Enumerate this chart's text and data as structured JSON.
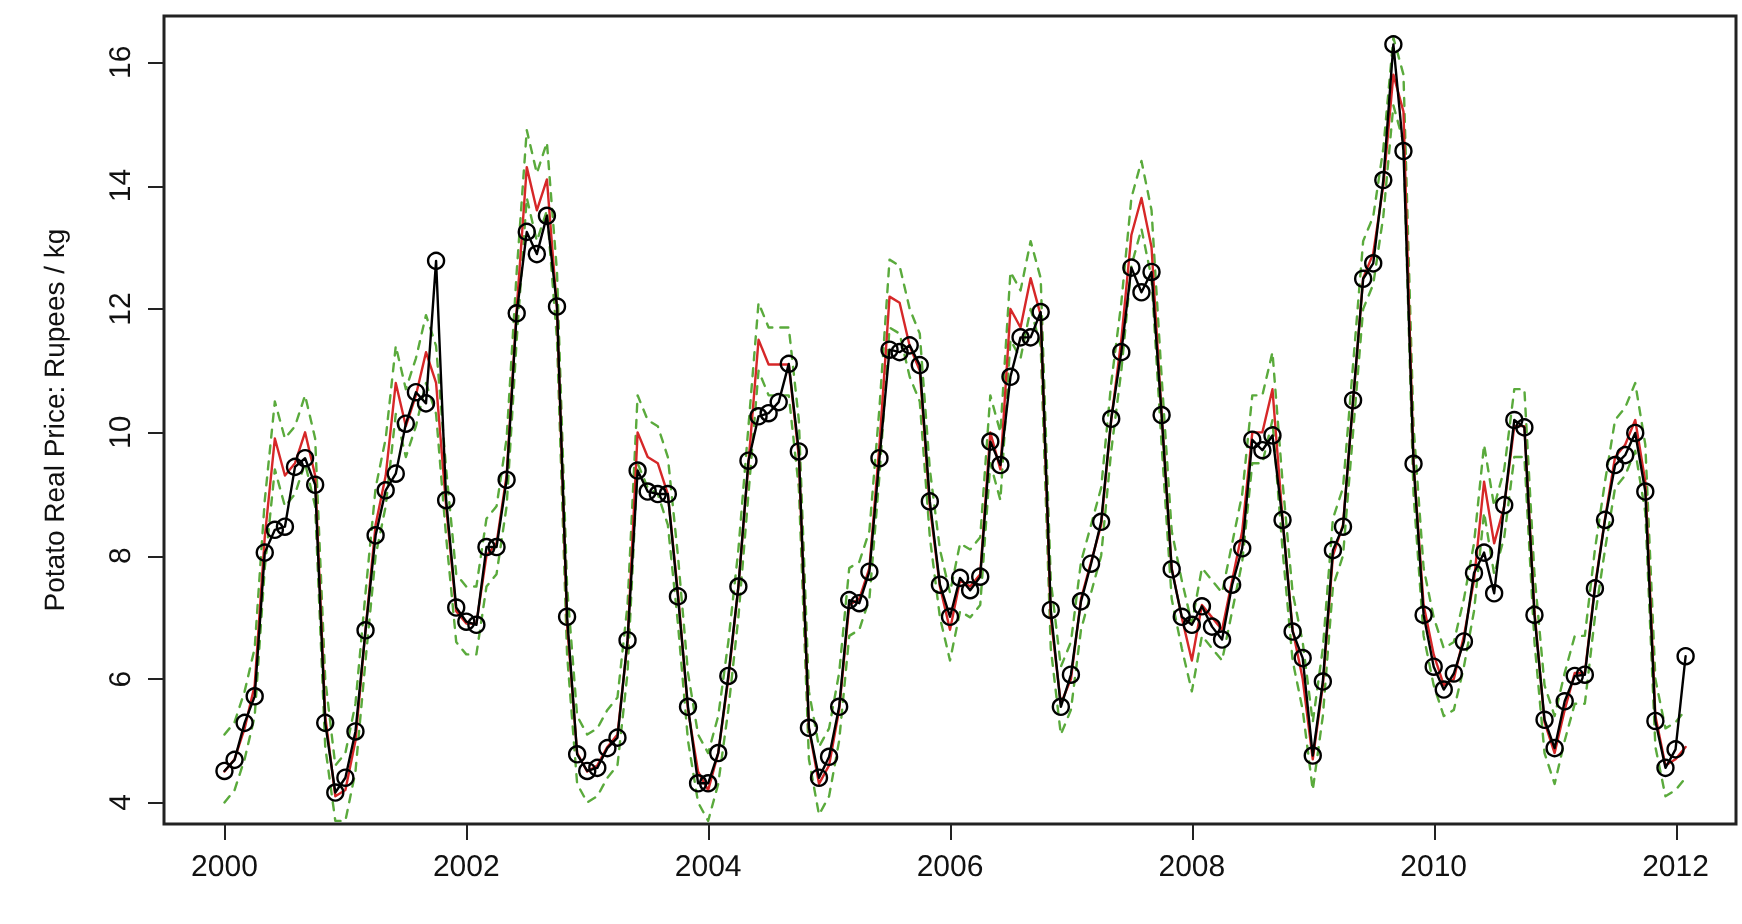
{
  "chart_data": {
    "type": "line",
    "ylabel": "Potato Real Price: Rupees / kg",
    "x": [
      "2000-01",
      "2000-02",
      "2000-03",
      "2000-04",
      "2000-05",
      "2000-06",
      "2000-07",
      "2000-08",
      "2000-09",
      "2000-10",
      "2000-11",
      "2000-12",
      "2001-01",
      "2001-02",
      "2001-03",
      "2001-04",
      "2001-05",
      "2001-06",
      "2001-07",
      "2001-08",
      "2001-09",
      "2001-10",
      "2001-11",
      "2001-12",
      "2002-01",
      "2002-02",
      "2002-03",
      "2002-04",
      "2002-05",
      "2002-06",
      "2002-07",
      "2002-08",
      "2002-09",
      "2002-10",
      "2002-11",
      "2002-12",
      "2003-01",
      "2003-02",
      "2003-03",
      "2003-04",
      "2003-05",
      "2003-06",
      "2003-07",
      "2003-08",
      "2003-09",
      "2003-10",
      "2003-11",
      "2003-12",
      "2004-01",
      "2004-02",
      "2004-03",
      "2004-04",
      "2004-05",
      "2004-06",
      "2004-07",
      "2004-08",
      "2004-09",
      "2004-10",
      "2004-11",
      "2004-12",
      "2005-01",
      "2005-02",
      "2005-03",
      "2005-04",
      "2005-05",
      "2005-06",
      "2005-07",
      "2005-08",
      "2005-09",
      "2005-10",
      "2005-11",
      "2005-12",
      "2006-01",
      "2006-02",
      "2006-03",
      "2006-04",
      "2006-05",
      "2006-06",
      "2006-07",
      "2006-08",
      "2006-09",
      "2006-10",
      "2006-11",
      "2006-12",
      "2007-01",
      "2007-02",
      "2007-03",
      "2007-04",
      "2007-05",
      "2007-06",
      "2007-07",
      "2007-08",
      "2007-09",
      "2007-10",
      "2007-11",
      "2007-12",
      "2008-01",
      "2008-02",
      "2008-03",
      "2008-04",
      "2008-05",
      "2008-06",
      "2008-07",
      "2008-08",
      "2008-09",
      "2008-10",
      "2008-11",
      "2008-12",
      "2009-01",
      "2009-02",
      "2009-03",
      "2009-04",
      "2009-05",
      "2009-06",
      "2009-07",
      "2009-08",
      "2009-09",
      "2009-10",
      "2009-11",
      "2009-12",
      "2010-01",
      "2010-02",
      "2010-03",
      "2010-04",
      "2010-05",
      "2010-06",
      "2010-07",
      "2010-08",
      "2010-09",
      "2010-10",
      "2010-11",
      "2010-12",
      "2011-01",
      "2011-02",
      "2011-03",
      "2011-04",
      "2011-05",
      "2011-06",
      "2011-07",
      "2011-08",
      "2011-09",
      "2011-10",
      "2011-11",
      "2011-12",
      "2012-01",
      "2012-02"
    ],
    "series": [
      {
        "color": "#5aaa3c",
        "line_style": "dashed",
        "marker": "none",
        "values": [
          5.1,
          5.3,
          5.8,
          6.5,
          8.9,
          10.5,
          9.9,
          10.1,
          10.6,
          9.9,
          6.0,
          4.6,
          4.8,
          5.6,
          7.4,
          9.1,
          9.9,
          11.4,
          10.7,
          11.2,
          11.9,
          11.4,
          9.4,
          7.7,
          7.5,
          7.5,
          8.6,
          8.8,
          9.9,
          12.6,
          14.9,
          14.2,
          14.7,
          12.6,
          7.5,
          5.4,
          5.1,
          5.2,
          5.5,
          5.7,
          7.2,
          10.6,
          10.2,
          10.1,
          9.6,
          8.0,
          6.1,
          5.1,
          4.8,
          5.4,
          6.6,
          8.1,
          10.1,
          12.1,
          11.7,
          11.7,
          11.7,
          10.2,
          5.8,
          4.9,
          5.2,
          6.1,
          7.8,
          7.9,
          8.4,
          10.4,
          12.8,
          12.7,
          12.0,
          11.6,
          9.4,
          8.1,
          7.4,
          8.2,
          8.1,
          8.3,
          10.6,
          10.0,
          12.6,
          12.3,
          13.1,
          12.5,
          7.6,
          6.2,
          6.6,
          7.9,
          8.5,
          9.1,
          10.8,
          12.1,
          13.8,
          14.4,
          13.6,
          10.9,
          8.4,
          7.6,
          6.9,
          7.8,
          7.6,
          7.4,
          8.2,
          9.0,
          10.6,
          10.6,
          11.3,
          9.2,
          7.4,
          6.6,
          5.3,
          6.5,
          8.6,
          9.1,
          11.1,
          13.1,
          13.5,
          14.6,
          16.4,
          15.8,
          10.1,
          7.8,
          7.0,
          6.5,
          6.6,
          7.3,
          8.2,
          9.8,
          8.8,
          9.4,
          10.7,
          10.7,
          7.7,
          5.9,
          5.4,
          6.1,
          6.7,
          6.7,
          8.1,
          9.2,
          10.2,
          10.4,
          10.8,
          9.8,
          6.0,
          5.2,
          5.3,
          5.5
        ]
      },
      {
        "color": "#5aaa3c",
        "line_style": "dashed",
        "marker": "none",
        "values": [
          4.0,
          4.2,
          4.7,
          5.4,
          7.8,
          9.4,
          8.8,
          9.0,
          9.5,
          8.8,
          4.9,
          3.7,
          3.7,
          4.5,
          6.3,
          8.0,
          8.8,
          10.3,
          9.6,
          10.1,
          10.8,
          10.3,
          8.3,
          6.6,
          6.4,
          6.4,
          7.5,
          7.7,
          8.8,
          11.5,
          13.8,
          13.1,
          13.6,
          11.5,
          6.4,
          4.3,
          4.0,
          4.1,
          4.4,
          4.6,
          6.1,
          9.5,
          9.1,
          9.0,
          8.5,
          6.9,
          5.0,
          4.0,
          3.7,
          4.3,
          5.5,
          7.0,
          9.0,
          11.0,
          10.6,
          10.6,
          10.6,
          9.1,
          4.7,
          3.8,
          4.1,
          5.0,
          6.7,
          6.8,
          7.3,
          9.3,
          11.7,
          11.6,
          10.9,
          10.5,
          8.3,
          7.0,
          6.3,
          7.1,
          7.0,
          7.2,
          9.5,
          8.9,
          11.5,
          11.2,
          12.0,
          11.4,
          6.5,
          5.1,
          5.5,
          6.8,
          7.4,
          8.0,
          9.7,
          11.0,
          12.7,
          13.3,
          12.5,
          9.8,
          7.3,
          6.5,
          5.8,
          6.7,
          6.5,
          6.3,
          7.1,
          7.9,
          9.5,
          9.5,
          10.2,
          8.1,
          6.3,
          5.5,
          4.2,
          5.4,
          7.5,
          8.0,
          10.0,
          12.0,
          12.4,
          13.5,
          15.3,
          14.7,
          9.0,
          6.7,
          5.9,
          5.4,
          5.5,
          6.2,
          7.1,
          8.7,
          7.7,
          8.3,
          9.6,
          9.6,
          6.6,
          4.8,
          4.3,
          5.0,
          5.6,
          5.6,
          7.0,
          8.1,
          9.1,
          9.3,
          9.7,
          8.7,
          4.9,
          4.1,
          4.2,
          4.4
        ]
      },
      {
        "color": "#d62728",
        "line_style": "solid",
        "marker": "none",
        "values": [
          4.5,
          4.7,
          5.2,
          5.9,
          8.3,
          9.9,
          9.3,
          9.5,
          10.0,
          9.3,
          5.4,
          4.1,
          4.2,
          5.0,
          6.8,
          8.5,
          9.3,
          10.8,
          10.1,
          10.6,
          11.3,
          10.8,
          8.8,
          7.1,
          6.9,
          6.9,
          8.0,
          8.2,
          9.3,
          12.0,
          14.3,
          13.6,
          14.1,
          12.0,
          6.9,
          4.8,
          4.5,
          4.6,
          4.9,
          5.1,
          6.6,
          10.0,
          9.6,
          9.5,
          9.0,
          7.4,
          5.5,
          4.5,
          4.2,
          4.8,
          6.0,
          7.5,
          9.5,
          11.5,
          11.1,
          11.1,
          11.1,
          9.6,
          5.2,
          4.3,
          4.6,
          5.5,
          7.2,
          7.3,
          7.8,
          9.8,
          12.2,
          12.1,
          11.4,
          11.0,
          8.8,
          7.5,
          6.8,
          7.6,
          7.5,
          7.7,
          10.0,
          9.4,
          12.0,
          11.7,
          12.5,
          11.9,
          7.0,
          5.6,
          6.0,
          7.3,
          7.9,
          8.5,
          10.2,
          11.5,
          13.2,
          13.8,
          13.0,
          10.3,
          7.8,
          7.0,
          6.3,
          7.2,
          7.0,
          6.8,
          7.6,
          8.4,
          10.0,
          10.0,
          10.7,
          8.6,
          6.8,
          6.0,
          4.7,
          5.9,
          8.0,
          8.5,
          10.5,
          12.5,
          12.9,
          14.0,
          15.8,
          15.2,
          9.5,
          7.2,
          6.4,
          5.9,
          6.0,
          6.7,
          7.6,
          9.2,
          8.2,
          8.8,
          10.1,
          10.1,
          7.1,
          5.3,
          4.8,
          5.5,
          6.1,
          6.1,
          7.5,
          8.6,
          9.6,
          9.8,
          10.2,
          9.2,
          5.4,
          4.6,
          4.7,
          4.9
        ]
      },
      {
        "color": "#000000",
        "line_style": "solid",
        "marker": "circle",
        "values": [
          4.51,
          4.69,
          5.29,
          5.72,
          8.05,
          8.42,
          8.47,
          9.44,
          9.58,
          9.15,
          5.29,
          4.16,
          4.4,
          5.15,
          6.79,
          8.33,
          9.06,
          9.33,
          10.14,
          10.65,
          10.47,
          12.78,
          8.9,
          7.16,
          6.93,
          6.88,
          8.14,
          8.14,
          9.23,
          11.93,
          13.25,
          12.89,
          13.51,
          12.04,
          7.01,
          4.78,
          4.51,
          4.56,
          4.88,
          5.05,
          6.63,
          9.38,
          9.04,
          9.0,
          9.0,
          7.34,
          5.55,
          4.31,
          4.31,
          4.8,
          6.05,
          7.5,
          9.54,
          10.26,
          10.31,
          10.49,
          11.11,
          9.69,
          5.21,
          4.4,
          4.74,
          5.55,
          7.28,
          7.23,
          7.74,
          9.58,
          11.34,
          11.3,
          11.41,
          11.09,
          8.88,
          7.53,
          7.01,
          7.64,
          7.44,
          7.66,
          9.85,
          9.47,
          10.9,
          11.54,
          11.54,
          11.95,
          7.12,
          5.55,
          6.07,
          7.26,
          7.87,
          8.55,
          10.22,
          11.3,
          12.67,
          12.27,
          12.6,
          10.28,
          7.78,
          7.01,
          6.88,
          7.18,
          6.85,
          6.64,
          7.53,
          8.12,
          9.88,
          9.71,
          9.95,
          8.58,
          6.77,
          6.34,
          4.76,
          5.96,
          8.09,
          8.47,
          10.52,
          12.49,
          12.74,
          14.09,
          16.29,
          14.56,
          9.49,
          7.04,
          6.2,
          5.83,
          6.09,
          6.61,
          7.72,
          8.05,
          7.39,
          8.82,
          10.2,
          10.08,
          7.04,
          5.34,
          4.88,
          5.64,
          6.05,
          6.07,
          7.47,
          8.58,
          9.47,
          9.63,
          9.99,
          9.04,
          5.32,
          4.56,
          4.86,
          6.37
        ]
      }
    ],
    "xlim": [
      "1999-07",
      "2012-07"
    ],
    "xticks": [
      "2000",
      "2002",
      "2004",
      "2006",
      "2008",
      "2010",
      "2012"
    ],
    "ylim": [
      3.65,
      16.75
    ],
    "yticks": [
      4,
      6,
      8,
      10,
      12,
      14,
      16
    ],
    "grid": false
  }
}
